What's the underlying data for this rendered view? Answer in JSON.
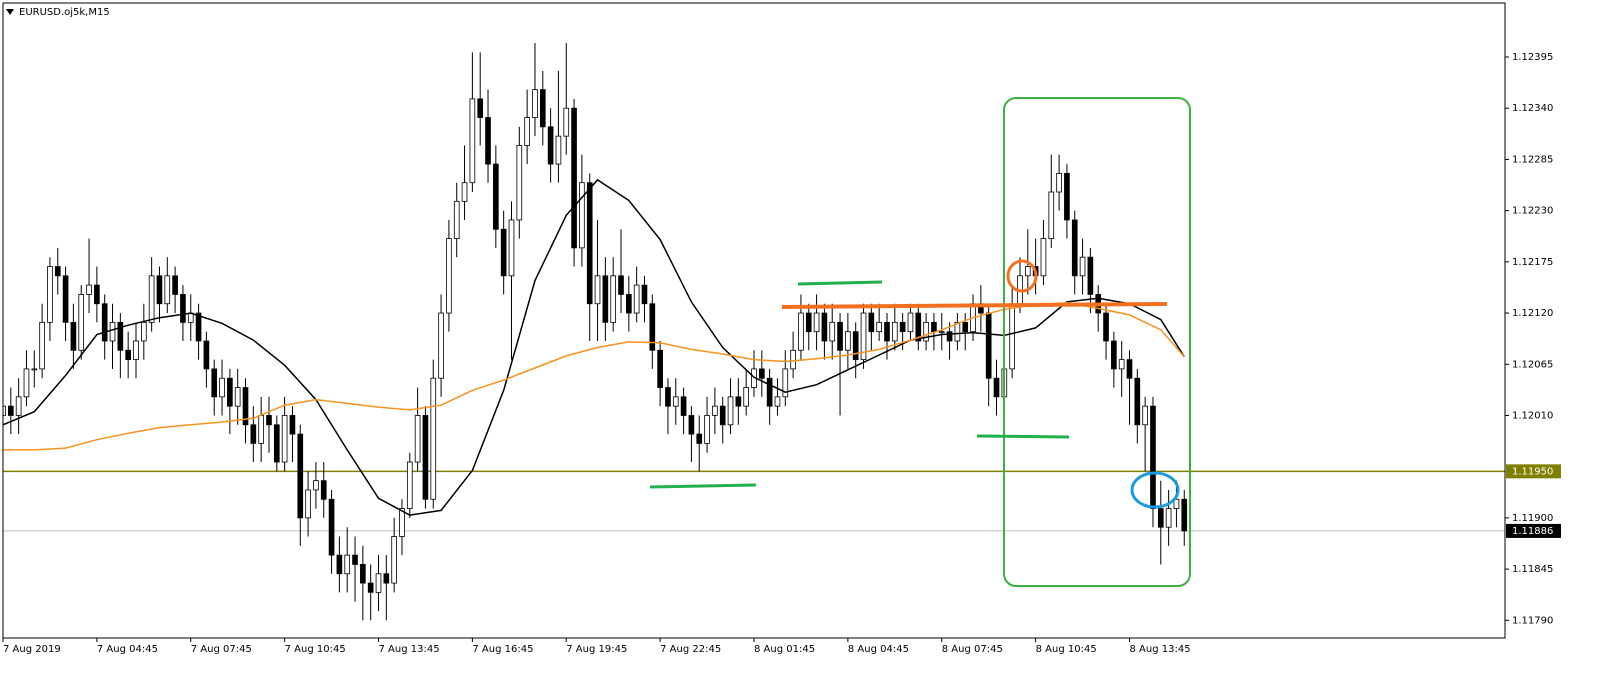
{
  "chart_data": {
    "type": "candlestick",
    "title": "EURUSD.oj5k,M15",
    "xlim": [
      0,
      192
    ],
    "ylim": [
      1.11771,
      1.12453
    ],
    "xticks": [
      {
        "value": 0,
        "label": "7 Aug 2019"
      },
      {
        "value": 12,
        "label": "7 Aug 04:45"
      },
      {
        "value": 24,
        "label": "7 Aug 07:45"
      },
      {
        "value": 36,
        "label": "7 Aug 10:45"
      },
      {
        "value": 48,
        "label": "7 Aug 13:45"
      },
      {
        "value": 60,
        "label": "7 Aug 16:45"
      },
      {
        "value": 72,
        "label": "7 Aug 19:45"
      },
      {
        "value": 84,
        "label": "7 Aug 22:45"
      },
      {
        "value": 96,
        "label": "8 Aug 01:45"
      },
      {
        "value": 108,
        "label": "8 Aug 04:45"
      },
      {
        "value": 120,
        "label": "8 Aug 07:45"
      },
      {
        "value": 132,
        "label": "8 Aug 10:45"
      },
      {
        "value": 144,
        "label": "8 Aug 13:45"
      }
    ],
    "yticks": [
      1.12395,
      {
        "value": 1.1234,
        "label": "1.12340"
      },
      1.12285,
      {
        "value": 1.1223,
        "label": "1.12230"
      },
      1.12175,
      {
        "value": 1.1212,
        "label": "1.12120"
      },
      1.12065,
      {
        "value": 1.1201,
        "label": "1.12010"
      },
      {
        "value": 1.119,
        "label": "1.11900"
      },
      1.11845,
      {
        "value": 1.1179,
        "label": "1.11790"
      }
    ],
    "levels": [
      {
        "value": 1.1195,
        "label": "1.11950",
        "color": "#808000"
      },
      {
        "value": 1.11886,
        "label": "1.11886",
        "color": "#c0c0c0"
      }
    ],
    "candles": {
      "up_color": "#ffffff",
      "down_color": "#000000",
      "open": [
        1.1201,
        1.1202,
        1.1201,
        1.1203,
        1.1206,
        1.1206,
        1.1211,
        1.1217,
        1.1216,
        1.1211,
        1.1208,
        1.1214,
        1.1215,
        1.1213,
        1.1209,
        1.1211,
        1.1208,
        1.1207,
        1.1209,
        1.1211,
        1.1216,
        1.1213,
        1.1216,
        1.1214,
        1.1211,
        1.1212,
        1.1209,
        1.1206,
        1.1203,
        1.1205,
        1.1202,
        1.1204,
        1.12,
        1.1198,
        1.1201,
        1.12,
        1.1196,
        1.1201,
        1.1199,
        1.119,
        1.1193,
        1.1194,
        1.1192,
        1.1186,
        1.1184,
        1.1186,
        1.1185,
        1.1183,
        1.1182,
        1.1184,
        1.1183,
        1.1188,
        1.1191,
        1.1196,
        1.1201,
        1.1192,
        1.1205,
        1.1212,
        1.122,
        1.1224,
        1.1226,
        1.1235,
        1.1233,
        1.1228,
        1.1221,
        1.1216,
        1.1222,
        1.123,
        1.1233,
        1.1236,
        1.1232,
        1.1228,
        1.1231,
        1.1234,
        1.1219,
        1.1226,
        1.1213,
        1.1216,
        1.1211,
        1.1216,
        1.1214,
        1.1212,
        1.1215,
        1.1213,
        1.1208,
        1.1204,
        1.1202,
        1.1203,
        1.1201,
        1.1199,
        1.1198,
        1.1201,
        1.1202,
        1.12,
        1.1203,
        1.1202,
        1.1204,
        1.1206,
        1.1205,
        1.1202,
        1.1203,
        1.1206,
        1.1208,
        1.1212,
        1.121,
        1.1212,
        1.1209,
        1.1211,
        1.1208,
        1.121,
        1.1207,
        1.1212,
        1.121,
        1.1211,
        1.1209,
        1.1211,
        1.121,
        1.1212,
        1.1209,
        1.1211,
        1.121,
        1.121,
        1.1209,
        1.1211,
        1.121,
        1.1213,
        1.1212,
        1.1205,
        1.1203,
        1.1206,
        1.1213,
        1.1216,
        1.1217,
        1.1216,
        1.122,
        1.1225,
        1.1227,
        1.1222,
        1.1216,
        1.1218,
        1.1214,
        1.1212,
        1.1209,
        1.1206,
        1.1207,
        1.1205,
        1.12,
        1.1202,
        1.1191,
        1.1189,
        1.1191,
        1.1192
      ],
      "high": [
        1.1204,
        1.1204,
        1.1205,
        1.1208,
        1.1208,
        1.1213,
        1.1218,
        1.1219,
        1.1217,
        1.1213,
        1.1215,
        1.122,
        1.1217,
        1.1214,
        1.1213,
        1.1212,
        1.121,
        1.1211,
        1.1213,
        1.1218,
        1.1217,
        1.1218,
        1.1217,
        1.1215,
        1.1214,
        1.1213,
        1.121,
        1.1207,
        1.1207,
        1.1206,
        1.1206,
        1.1205,
        1.1202,
        1.1203,
        1.1203,
        1.1201,
        1.1203,
        1.1202,
        1.12,
        1.1195,
        1.1196,
        1.1196,
        1.1193,
        1.1188,
        1.1189,
        1.1188,
        1.1187,
        1.1185,
        1.1186,
        1.1186,
        1.119,
        1.1192,
        1.1197,
        1.1204,
        1.1202,
        1.1207,
        1.1214,
        1.1222,
        1.1226,
        1.123,
        1.124,
        1.124,
        1.1236,
        1.123,
        1.1223,
        1.1224,
        1.1232,
        1.1236,
        1.1241,
        1.1238,
        1.1234,
        1.1238,
        1.1241,
        1.1235,
        1.1229,
        1.1227,
        1.1222,
        1.1218,
        1.1218,
        1.1221,
        1.1216,
        1.1217,
        1.1216,
        1.1214,
        1.1209,
        1.1205,
        1.1205,
        1.1204,
        1.1202,
        1.1201,
        1.1203,
        1.1204,
        1.1203,
        1.1205,
        1.1205,
        1.1206,
        1.1208,
        1.1208,
        1.1206,
        1.1205,
        1.1208,
        1.121,
        1.1214,
        1.1213,
        1.1214,
        1.1213,
        1.1213,
        1.1212,
        1.1212,
        1.1211,
        1.1213,
        1.1213,
        1.1213,
        1.1212,
        1.1213,
        1.1212,
        1.1213,
        1.1213,
        1.1212,
        1.1212,
        1.1212,
        1.1211,
        1.1212,
        1.1212,
        1.1214,
        1.1215,
        1.1213,
        1.1207,
        1.1214,
        1.1215,
        1.1218,
        1.1221,
        1.122,
        1.1222,
        1.1229,
        1.1229,
        1.1228,
        1.1223,
        1.122,
        1.1219,
        1.1215,
        1.1213,
        1.121,
        1.1209,
        1.1208,
        1.1206,
        1.1203,
        1.1203,
        1.1194,
        1.1193,
        1.1194,
        1.1193
      ],
      "low": [
        1.1199,
        1.1199,
        1.1199,
        1.1202,
        1.1204,
        1.1205,
        1.1209,
        1.1214,
        1.1209,
        1.1206,
        1.1207,
        1.1212,
        1.1211,
        1.1207,
        1.1206,
        1.1205,
        1.1205,
        1.1205,
        1.1207,
        1.121,
        1.1211,
        1.1212,
        1.1212,
        1.1209,
        1.1209,
        1.1207,
        1.1204,
        1.1201,
        1.1201,
        1.1199,
        1.12,
        1.1198,
        1.1196,
        1.1196,
        1.1197,
        1.1195,
        1.1195,
        1.1196,
        1.1187,
        1.1188,
        1.1191,
        1.119,
        1.1184,
        1.1182,
        1.1182,
        1.1181,
        1.1179,
        1.1179,
        1.118,
        1.1179,
        1.1182,
        1.1186,
        1.119,
        1.1195,
        1.1191,
        1.1191,
        1.1203,
        1.121,
        1.1218,
        1.1222,
        1.1225,
        1.123,
        1.1226,
        1.1219,
        1.1214,
        1.1207,
        1.122,
        1.1228,
        1.1231,
        1.123,
        1.1226,
        1.1226,
        1.1229,
        1.1217,
        1.1217,
        1.1209,
        1.1209,
        1.1209,
        1.121,
        1.1212,
        1.121,
        1.1211,
        1.1211,
        1.1206,
        1.1202,
        1.1199,
        1.12,
        1.1199,
        1.1196,
        1.1195,
        1.1197,
        1.1199,
        1.1198,
        1.1199,
        1.12,
        1.1201,
        1.1203,
        1.1203,
        1.12,
        1.1201,
        1.1202,
        1.1205,
        1.1207,
        1.1208,
        1.1208,
        1.1207,
        1.1207,
        1.1201,
        1.1206,
        1.1205,
        1.1206,
        1.1208,
        1.1209,
        1.1207,
        1.1208,
        1.1208,
        1.1209,
        1.1208,
        1.1208,
        1.1208,
        1.1208,
        1.1207,
        1.1208,
        1.1208,
        1.1209,
        1.121,
        1.1202,
        1.1201,
        1.12,
        1.1205,
        1.1212,
        1.1214,
        1.1214,
        1.1215,
        1.1219,
        1.1223,
        1.122,
        1.1214,
        1.1214,
        1.1212,
        1.121,
        1.1207,
        1.1204,
        1.1203,
        1.12,
        1.1198,
        1.1195,
        1.1189,
        1.1185,
        1.1187,
        1.1189,
        1.1187
      ],
      "close": [
        1.1202,
        1.1201,
        1.1203,
        1.1206,
        1.1206,
        1.1211,
        1.1217,
        1.1216,
        1.1211,
        1.1208,
        1.1214,
        1.1215,
        1.1213,
        1.1209,
        1.1211,
        1.1208,
        1.1207,
        1.1209,
        1.1211,
        1.1216,
        1.1213,
        1.1216,
        1.1214,
        1.1211,
        1.1212,
        1.1209,
        1.1206,
        1.1203,
        1.1205,
        1.1202,
        1.1204,
        1.12,
        1.1198,
        1.1201,
        1.12,
        1.1196,
        1.1201,
        1.1199,
        1.119,
        1.1193,
        1.1194,
        1.1192,
        1.1186,
        1.1184,
        1.1186,
        1.1185,
        1.1183,
        1.1182,
        1.1184,
        1.1183,
        1.1188,
        1.1191,
        1.1196,
        1.1201,
        1.1192,
        1.1205,
        1.1212,
        1.122,
        1.1224,
        1.1226,
        1.1235,
        1.1233,
        1.1228,
        1.1221,
        1.1216,
        1.1222,
        1.123,
        1.1233,
        1.1236,
        1.1232,
        1.1228,
        1.1231,
        1.1234,
        1.1219,
        1.1226,
        1.1213,
        1.1216,
        1.1211,
        1.1216,
        1.1214,
        1.1212,
        1.1215,
        1.1213,
        1.1208,
        1.1204,
        1.1202,
        1.1203,
        1.1201,
        1.1199,
        1.1198,
        1.1201,
        1.1202,
        1.12,
        1.1203,
        1.1202,
        1.1204,
        1.1206,
        1.1205,
        1.1202,
        1.1203,
        1.1206,
        1.1208,
        1.1212,
        1.121,
        1.1212,
        1.1209,
        1.1211,
        1.1208,
        1.121,
        1.1207,
        1.1212,
        1.121,
        1.1211,
        1.1209,
        1.1211,
        1.121,
        1.1212,
        1.1209,
        1.1211,
        1.121,
        1.121,
        1.1209,
        1.1211,
        1.121,
        1.1213,
        1.1212,
        1.1205,
        1.1203,
        1.1206,
        1.1213,
        1.1216,
        1.1217,
        1.1216,
        1.122,
        1.1225,
        1.1227,
        1.1222,
        1.1216,
        1.1218,
        1.1214,
        1.1212,
        1.1209,
        1.1206,
        1.1207,
        1.1205,
        1.12,
        1.1202,
        1.1191,
        1.1189,
        1.1191,
        1.1192,
        1.11886
      ]
    },
    "lines": [
      {
        "color": "#000000",
        "x": [
          0,
          4,
          8,
          12,
          16,
          20,
          24,
          28,
          32,
          36,
          40,
          44,
          48,
          52,
          56,
          60,
          64,
          68,
          72,
          76,
          80,
          84,
          88,
          92,
          96,
          100,
          104,
          108,
          112,
          116,
          120,
          124,
          128,
          132,
          136,
          140,
          144,
          148,
          151
        ],
        "values": [
          1.12,
          1.12014,
          1.12053,
          1.12097,
          1.12107,
          1.12115,
          1.1212,
          1.12109,
          1.12091,
          1.12064,
          1.12027,
          1.11973,
          1.11921,
          1.11903,
          1.11908,
          1.11951,
          1.12037,
          1.12155,
          1.12225,
          1.12263,
          1.12241,
          1.12199,
          1.12132,
          1.12083,
          1.12051,
          1.12035,
          1.12043,
          1.12059,
          1.12075,
          1.12091,
          1.12097,
          1.12099,
          1.12096,
          1.12104,
          1.12132,
          1.12136,
          1.1213,
          1.12113,
          1.12073
        ]
      },
      {
        "color": "#f7931e",
        "x": [
          0,
          4,
          8,
          12,
          16,
          20,
          24,
          28,
          32,
          36,
          40,
          44,
          48,
          52,
          56,
          60,
          64,
          68,
          72,
          76,
          80,
          84,
          88,
          92,
          96,
          100,
          104,
          108,
          112,
          116,
          120,
          124,
          128,
          132,
          136,
          140,
          144,
          148,
          151
        ],
        "values": [
          1.11973,
          1.11973,
          1.11975,
          1.11984,
          1.11991,
          1.11997,
          1.12,
          1.12003,
          1.12007,
          1.12021,
          1.12027,
          1.12023,
          1.12019,
          1.12016,
          1.12021,
          1.12037,
          1.12048,
          1.12061,
          1.12074,
          1.12083,
          1.12089,
          1.12088,
          1.12081,
          1.12076,
          1.1207,
          1.12068,
          1.12071,
          1.12075,
          1.12081,
          1.12091,
          1.12102,
          1.12115,
          1.12124,
          1.12129,
          1.12131,
          1.12125,
          1.12118,
          1.12102,
          1.12073
        ]
      }
    ]
  }
}
